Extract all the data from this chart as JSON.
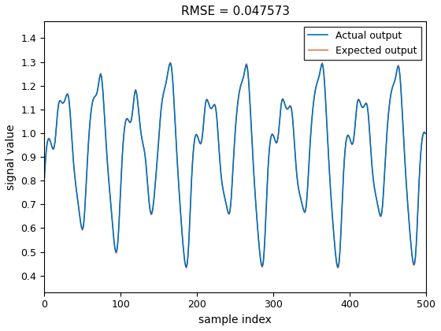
{
  "title": "RMSE = 0.047573",
  "xlabel": "sample index",
  "ylabel": "signal value",
  "xlim": [
    0,
    500
  ],
  "ylim": [
    0.33,
    1.47
  ],
  "yticks": [
    0.4,
    0.5,
    0.6,
    0.7,
    0.8,
    0.9,
    1.0,
    1.1,
    1.2,
    1.3,
    1.4
  ],
  "xticks": [
    0,
    100,
    200,
    300,
    400,
    500
  ],
  "actual_color": "#0072BD",
  "expected_color": "#D95319",
  "actual_label": "Actual output",
  "expected_label": "Expected output",
  "actual_linewidth": 1.2,
  "expected_linewidth": 0.9,
  "legend_loc": "upper right",
  "title_fontsize": 11,
  "label_fontsize": 10,
  "tick_fontsize": 9,
  "legend_fontsize": 9
}
